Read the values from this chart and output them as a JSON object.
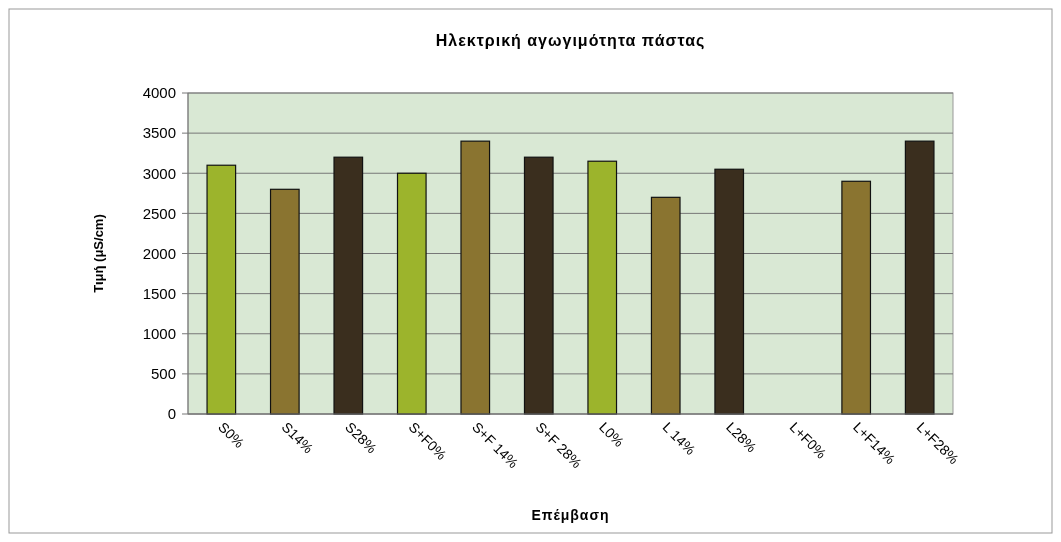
{
  "chart_data": {
    "type": "bar",
    "title": "Ηλεκτρική αγωγιμότητα πάστας",
    "xlabel": "Επέμβαση",
    "ylabel": "Τιμή (μS/cm)",
    "categories": [
      "S0%",
      "S14%",
      "S28%",
      "S+F0%",
      "S+F 14%",
      "S+F 28%",
      "L0%",
      "L 14%",
      "L28%",
      "L+F0%",
      "L+F14%",
      "L+F28%"
    ],
    "values": [
      3100,
      2800,
      3200,
      3000,
      3400,
      3200,
      3150,
      2700,
      3050,
      null,
      2900,
      3400
    ],
    "colors": [
      "#9cb42c",
      "#8a7430",
      "#3a2e1e",
      "#9cb42c",
      "#8a7430",
      "#3a2e1e",
      "#9cb42c",
      "#8a7430",
      "#3a2e1e",
      null,
      "#8a7430",
      "#3a2e1e"
    ],
    "ylim": [
      0,
      4000
    ],
    "yticks": [
      0,
      500,
      1000,
      1500,
      2000,
      2500,
      3000,
      3500,
      4000
    ],
    "grid": "y"
  }
}
